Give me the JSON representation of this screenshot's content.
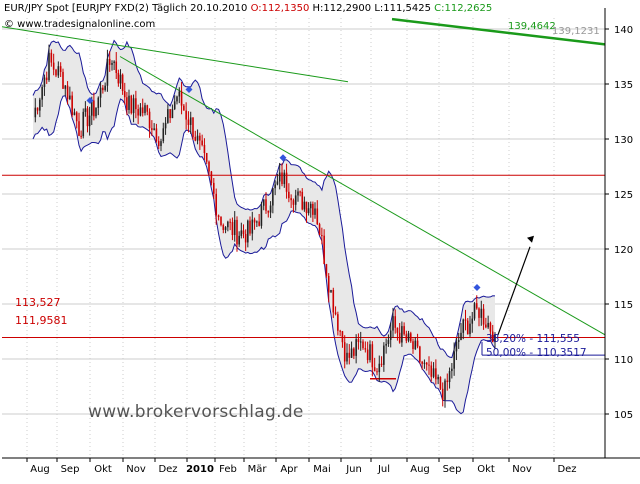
{
  "header": {
    "title": "EUR/JPY Spot [EURJPY FXD(2)",
    "period": "Täglich",
    "date": "20.10.2010",
    "open_label": "O:112,1350",
    "high_label": "H:112,2900",
    "low_label": "L:111,5425",
    "close_label": "C:112,2625",
    "copyright": "© www.tradesignalonline.com"
  },
  "watermark": "www.brokervorschlag.de",
  "colors": {
    "candle_up": "#222222",
    "candle_down": "#cc0000",
    "bollinger_band": "#1a1a99",
    "bollinger_fill": "#e8e8e8",
    "trendline_green": "#1a9a1a",
    "horizontal_red": "#cc0000",
    "fib_blue": "#1a1a99",
    "header_red": "#cc0000",
    "header_green": "#1a9a1a",
    "marker_blue": "#3355dd",
    "arrow": "#000000",
    "grid": "#cccccc"
  },
  "chart_data": {
    "type": "candlestick",
    "instrument": "EUR/JPY Spot",
    "x": [
      "Aug",
      "Sep",
      "Okt",
      "Nov",
      "Dez",
      "2010",
      "Feb",
      "Mär",
      "Apr",
      "Mai",
      "Jun",
      "Jul",
      "Aug",
      "Sep",
      "Okt",
      "Nov",
      "Dez"
    ],
    "ylim": [
      101,
      141
    ],
    "y_ticks": [
      105,
      110,
      115,
      120,
      125,
      130,
      135,
      140
    ],
    "grid": true,
    "close_series_approx": [
      {
        "x": "Aug",
        "y": 132
      },
      {
        "x": "Aug",
        "y": 137
      },
      {
        "x": "Sep",
        "y": 135.5
      },
      {
        "x": "Sep",
        "y": 131
      },
      {
        "x": "Okt",
        "y": 133
      },
      {
        "x": "Okt",
        "y": 137.5
      },
      {
        "x": "Nov",
        "y": 133
      },
      {
        "x": "Nov",
        "y": 132.5
      },
      {
        "x": "Dez",
        "y": 130
      },
      {
        "x": "Dez",
        "y": 134
      },
      {
        "x": "2010",
        "y": 131
      },
      {
        "x": "2010",
        "y": 126.5
      },
      {
        "x": "Feb",
        "y": 122.5
      },
      {
        "x": "Feb",
        "y": 121.5
      },
      {
        "x": "Mär",
        "y": 121.5
      },
      {
        "x": "Mär",
        "y": 124
      },
      {
        "x": "Apr",
        "y": 126.5
      },
      {
        "x": "Apr",
        "y": 124.5
      },
      {
        "x": "Mai",
        "y": 124
      },
      {
        "x": "Mai",
        "y": 116
      },
      {
        "x": "Jun",
        "y": 110
      },
      {
        "x": "Jun",
        "y": 111.5
      },
      {
        "x": "Jul",
        "y": 109.5
      },
      {
        "x": "Jul",
        "y": 113
      },
      {
        "x": "Aug",
        "y": 111
      },
      {
        "x": "Aug",
        "y": 108.5
      },
      {
        "x": "Sep",
        "y": 107
      },
      {
        "x": "Sep",
        "y": 112.5
      },
      {
        "x": "Okt",
        "y": 114.5
      },
      {
        "x": "Okt",
        "y": 112.26
      }
    ],
    "lines": {
      "green_long_trend_value": "139,4642",
      "green_long_trend_value_2": "139,1231",
      "horizontal_red_upper": 126.7,
      "horizontal_red_lower_label": "111,9581",
      "horizontal_red_lower": 111.9581,
      "level_label_113": "113,527",
      "level_113": 113.527,
      "fib_38": "38,20% - 111,555",
      "fib_50": "50,00% - 110,3517",
      "fib_50_value": 110.3517
    }
  }
}
